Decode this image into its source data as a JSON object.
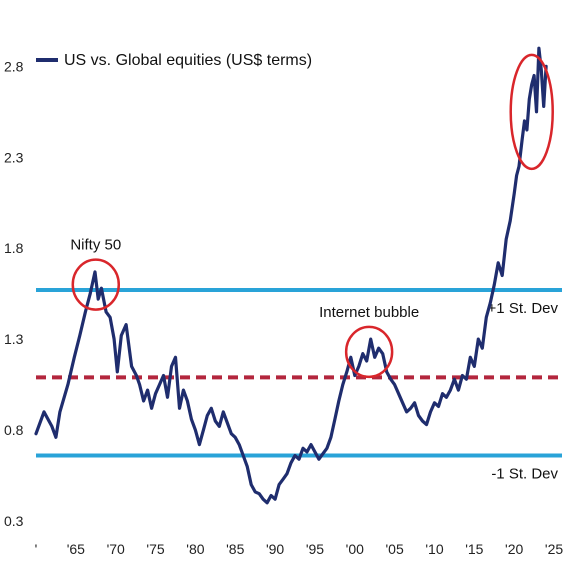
{
  "chart_data": {
    "type": "line",
    "series": [
      {
        "name": "US vs. Global equities (US$ terms)",
        "color": "#1f2d6e",
        "x": [
          1960.0,
          1961.0,
          1962.0,
          1962.5,
          1963.0,
          1964.0,
          1964.8,
          1965.5,
          1966.2,
          1966.8,
          1967.4,
          1967.8,
          1968.2,
          1968.8,
          1969.3,
          1969.8,
          1970.2,
          1970.7,
          1971.3,
          1972.0,
          1972.6,
          1973.0,
          1973.5,
          1974.0,
          1974.5,
          1975.0,
          1975.5,
          1976.0,
          1976.5,
          1977.0,
          1977.5,
          1978.0,
          1978.5,
          1979.0,
          1979.5,
          1980.0,
          1980.5,
          1981.0,
          1981.5,
          1982.0,
          1982.5,
          1983.0,
          1983.5,
          1984.0,
          1984.5,
          1985.0,
          1985.5,
          1986.0,
          1986.5,
          1987.0,
          1987.5,
          1988.0,
          1988.5,
          1989.0,
          1989.5,
          1990.0,
          1990.5,
          1991.0,
          1991.5,
          1992.0,
          1992.5,
          1993.0,
          1993.5,
          1994.0,
          1994.5,
          1995.0,
          1995.5,
          1996.0,
          1996.5,
          1997.0,
          1997.5,
          1998.0,
          1998.5,
          1999.0,
          1999.5,
          2000.0,
          2000.5,
          2001.0,
          2001.5,
          2002.0,
          2002.5,
          2003.0,
          2003.5,
          2004.0,
          2004.5,
          2005.0,
          2005.5,
          2006.0,
          2006.5,
          2007.0,
          2007.5,
          2008.0,
          2008.5,
          2009.0,
          2009.5,
          2010.0,
          2010.5,
          2011.0,
          2011.5,
          2012.0,
          2012.5,
          2013.0,
          2013.5,
          2014.0,
          2014.5,
          2015.0,
          2015.5,
          2016.0,
          2016.5,
          2017.0,
          2017.5,
          2018.0,
          2018.5,
          2019.0,
          2019.5,
          2020.0,
          2020.3,
          2020.6,
          2021.0,
          2021.3,
          2021.6,
          2021.9,
          2022.2,
          2022.5,
          2022.8,
          2023.1,
          2023.4,
          2023.7,
          2024.0
        ],
        "values": [
          0.78,
          0.9,
          0.82,
          0.76,
          0.9,
          1.05,
          1.2,
          1.32,
          1.45,
          1.55,
          1.67,
          1.52,
          1.58,
          1.45,
          1.42,
          1.3,
          1.12,
          1.32,
          1.38,
          1.15,
          1.1,
          1.05,
          0.96,
          1.02,
          0.92,
          1.0,
          1.05,
          1.1,
          0.98,
          1.15,
          1.2,
          0.92,
          1.02,
          0.96,
          0.86,
          0.8,
          0.72,
          0.8,
          0.88,
          0.92,
          0.85,
          0.82,
          0.9,
          0.84,
          0.78,
          0.76,
          0.72,
          0.66,
          0.6,
          0.5,
          0.46,
          0.45,
          0.42,
          0.4,
          0.44,
          0.42,
          0.5,
          0.53,
          0.56,
          0.62,
          0.66,
          0.64,
          0.7,
          0.68,
          0.72,
          0.68,
          0.64,
          0.67,
          0.7,
          0.76,
          0.86,
          0.96,
          1.05,
          1.12,
          1.2,
          1.1,
          1.15,
          1.22,
          1.18,
          1.3,
          1.2,
          1.25,
          1.22,
          1.12,
          1.08,
          1.05,
          1.0,
          0.95,
          0.9,
          0.92,
          0.95,
          0.88,
          0.85,
          0.83,
          0.9,
          0.95,
          0.93,
          1.0,
          0.98,
          1.02,
          1.08,
          1.02,
          1.1,
          1.08,
          1.2,
          1.15,
          1.3,
          1.25,
          1.42,
          1.5,
          1.6,
          1.72,
          1.65,
          1.85,
          1.95,
          2.1,
          2.2,
          2.25,
          2.4,
          2.5,
          2.45,
          2.62,
          2.7,
          2.75,
          2.55,
          2.9,
          2.78,
          2.58,
          2.8
        ]
      }
    ],
    "reference_lines": [
      {
        "label": "+1 St. Dev",
        "value": 1.57,
        "color": "#29a3d8",
        "style": "solid"
      },
      {
        "label": "",
        "value": 1.09,
        "color": "#b3263d",
        "style": "dashed"
      },
      {
        "label": "-1 St. Dev",
        "value": 0.66,
        "color": "#29a3d8",
        "style": "solid"
      }
    ],
    "annotations": [
      {
        "text": "Nifty 50",
        "x": 1967.5,
        "y": 1.6
      },
      {
        "text": "Internet bubble",
        "x": 2001.8,
        "y": 1.23
      },
      {
        "text": "",
        "x": 2022.2,
        "y": 2.55
      }
    ],
    "y_ticks": [
      "0.3",
      "0.8",
      "1.3",
      "1.8",
      "2.3",
      "2.8"
    ],
    "y_tick_values": [
      0.3,
      0.8,
      1.3,
      1.8,
      2.3,
      2.8
    ],
    "x_ticks": [
      "'",
      "'65",
      "'70",
      "'75",
      "'80",
      "'85",
      "'90",
      "'95",
      "'00",
      "'05",
      "'10",
      "'15",
      "'20",
      "'25"
    ],
    "x_tick_values": [
      1960,
      1965,
      1970,
      1975,
      1980,
      1985,
      1990,
      1995,
      2000,
      2005,
      2010,
      2015,
      2020,
      2025
    ],
    "xlim": [
      1960,
      2026
    ],
    "ylim": [
      0.3,
      3.0
    ],
    "legend": "top-left",
    "grid": false,
    "highlight_color": "#d9262b"
  }
}
